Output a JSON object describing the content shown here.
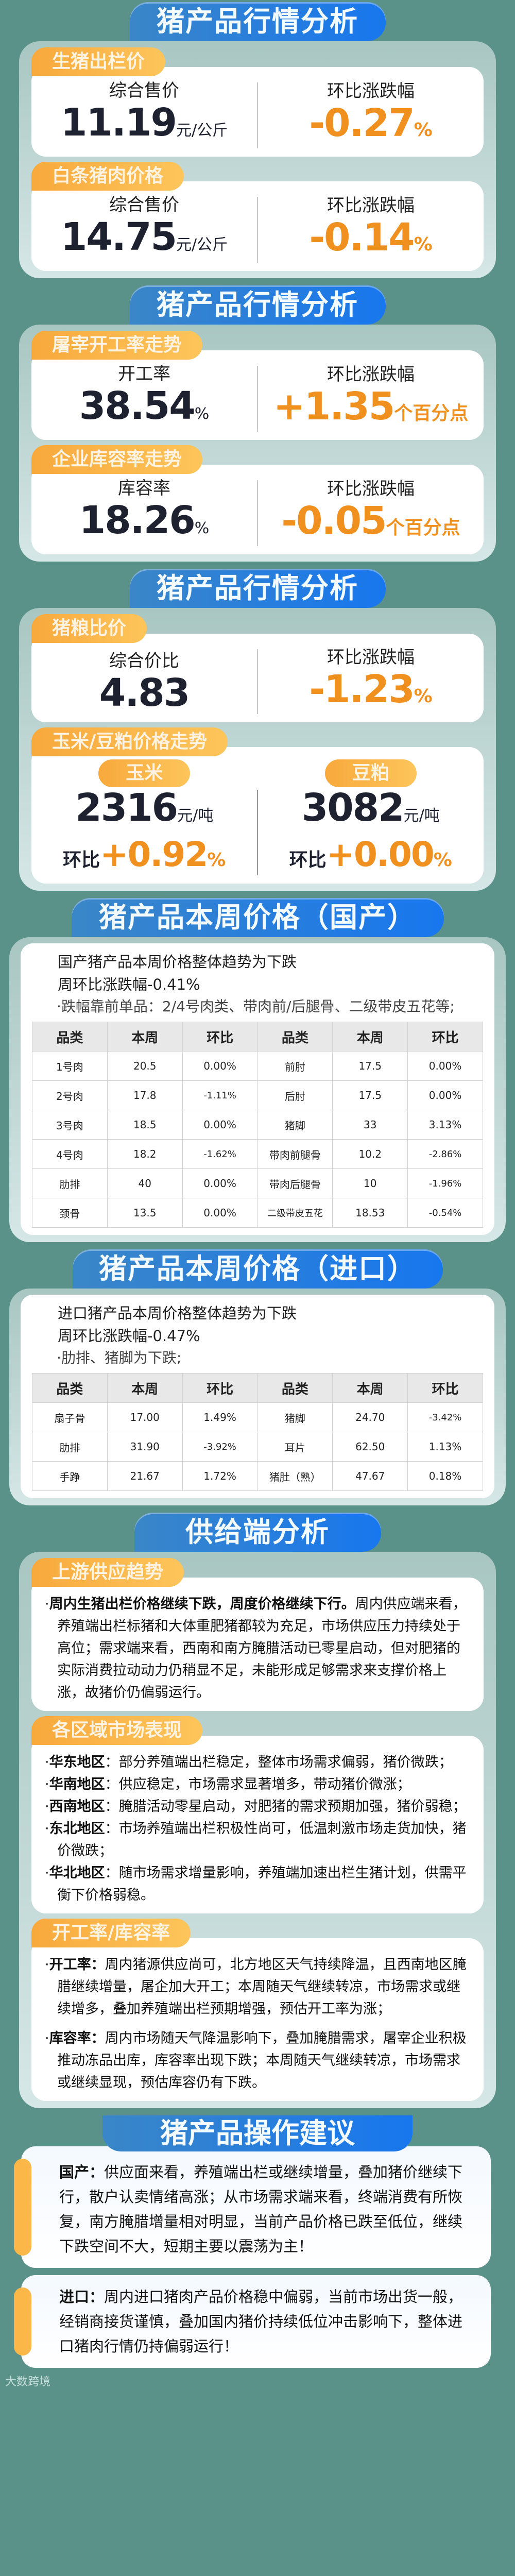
{
  "colors": {
    "background": "#5a9188",
    "banner": "#1877ee",
    "tab": "#fbb040",
    "change": "#f0901f",
    "value": "#1e2130"
  },
  "sections": {
    "s1": {
      "title": "猪产品行情分析",
      "hog": {
        "tab": "生猪出栏价",
        "label": "综合售价",
        "value": "11.19",
        "unit": "元/公斤",
        "change_label": "环比涨跌幅",
        "change": "-0.27",
        "change_unit": "%"
      },
      "carcass": {
        "tab": "白条猪肉价格",
        "label": "综合售价",
        "value": "14.75",
        "unit": "元/公斤",
        "change_label": "环比涨跌幅",
        "change": "-0.14",
        "change_unit": "%"
      }
    },
    "s2": {
      "title": "猪产品行情分析",
      "slaughter": {
        "tab": "屠宰开工率走势",
        "label": "开工率",
        "value": "38.54",
        "unit": "%",
        "change_label": "环比涨跌幅",
        "change": "+1.35",
        "change_unit": "个百分点"
      },
      "storage": {
        "tab": "企业库容率走势",
        "label": "库容率",
        "value": "18.26",
        "unit": "%",
        "change_label": "环比涨跌幅",
        "change": "-0.05",
        "change_unit": "个百分点"
      }
    },
    "s3": {
      "title": "猪产品行情分析",
      "ratio": {
        "tab": "猪粮比价",
        "label": "综合价比",
        "value": "4.83",
        "change_label": "环比涨跌幅",
        "change": "-1.23",
        "change_unit": "%"
      },
      "feed": {
        "tab": "玉米/豆粕价格走势",
        "corn": {
          "name": "玉米",
          "value": "2316",
          "unit": "元/吨",
          "change_label": "环比",
          "change": "+0.92",
          "change_unit": "%"
        },
        "soy": {
          "name": "豆粕",
          "value": "3082",
          "unit": "元/吨",
          "change_label": "环比",
          "change": "+0.00",
          "change_unit": "%"
        }
      }
    },
    "domestic": {
      "title": "猪产品本周价格（国产）",
      "line1": "国产猪产品本周价格整体趋势为下跌",
      "line2": "周环比涨跌幅-0.41%",
      "bullet": "·跌幅靠前单品：2/4号肉类、带肉前/后腿骨、二级带皮五花等;",
      "headers": [
        "品类",
        "本周",
        "环比",
        "品类",
        "本周",
        "环比"
      ],
      "rows": [
        [
          "1号肉",
          "20.5",
          "0.00%",
          "前肘",
          "17.5",
          "0.00%"
        ],
        [
          "2号肉",
          "17.8",
          "-1.11%",
          "后肘",
          "17.5",
          "0.00%"
        ],
        [
          "3号肉",
          "18.5",
          "0.00%",
          "猪脚",
          "33",
          "3.13%"
        ],
        [
          "4号肉",
          "18.2",
          "-1.62%",
          "带肉前腿骨",
          "10.2",
          "-2.86%"
        ],
        [
          "肋排",
          "40",
          "0.00%",
          "带肉后腿骨",
          "10",
          "-1.96%"
        ],
        [
          "颈骨",
          "13.5",
          "0.00%",
          "二级带皮五花",
          "18.53",
          "-0.54%"
        ]
      ]
    },
    "imported": {
      "title": "猪产品本周价格（进口）",
      "line1": "进口猪产品本周价格整体趋势为下跌",
      "line2": "周环比涨跌幅-0.47%",
      "bullet": "·肋排、猪脚为下跌;",
      "headers": [
        "品类",
        "本周",
        "环比",
        "品类",
        "本周",
        "环比"
      ],
      "rows": [
        [
          "扇子骨",
          "17.00",
          "1.49%",
          "猪脚",
          "24.70",
          "-3.42%"
        ],
        [
          "肋排",
          "31.90",
          "-3.92%",
          "耳片",
          "62.50",
          "1.13%"
        ],
        [
          "手踭",
          "21.67",
          "1.72%",
          "猪肚（熟）",
          "47.67",
          "0.18%"
        ]
      ]
    },
    "supply": {
      "title": "供给端分析",
      "upstream": {
        "tab": "上游供应趋势",
        "bold": "周内生猪出栏价格继续下跌，周度价格继续下行。",
        "text": "周内供应端来看，养殖端出栏标猪和大体重肥猪都较为充足，市场供应压力持续处于高位；需求端来看，西南和南方腌腊活动已零星启动，但对肥猪的实际消费拉动动力仍稍显不足，未能形成足够需求来支撑价格上涨，故猪价仍偏弱运行。"
      },
      "regions": {
        "tab": "各区域市场表现",
        "items": [
          {
            "name": "华东地区",
            "text": "：部分养殖端出栏稳定，整体市场需求偏弱，猪价微跌；"
          },
          {
            "name": "华南地区",
            "text": "：供应稳定，市场需求显著增多，带动猪价微涨；"
          },
          {
            "name": "西南地区",
            "text": "：腌腊活动零星启动，对肥猪的需求预期加强，猪价弱稳；"
          },
          {
            "name": "东北地区",
            "text": "：市场养殖端出栏积极性尚可，低温刺激市场走货加快，猪价微跌；"
          },
          {
            "name": "华北地区",
            "text": "：随市场需求增量影响，养殖端加速出栏生猪计划，供需平衡下价格弱稳。"
          }
        ]
      },
      "rates": {
        "tab": "开工率/库容率",
        "items": [
          {
            "name": "开工率：",
            "text": "周内猪源供应尚可，北方地区天气持续降温，且西南地区腌腊继续增量，屠企加大开工；本周随天气继续转凉，市场需求或继续增多，叠加养殖端出栏预期增强，预估开工率为涨；"
          },
          {
            "name": "库容率：",
            "text": "周内市场随天气降温影响下，叠加腌腊需求，屠宰企业积极推动冻品出库，库容率出现下跌；本周随天气继续转凉，市场需求或继续显现，预估库容仍有下跌。"
          }
        ]
      }
    },
    "advice": {
      "title": "猪产品操作建议",
      "domestic": {
        "name": "国产：",
        "text": "供应面来看，养殖端出栏或继续增量，叠加猪价继续下行，散户认卖情绪高涨；从市场需求端来看，终端消费有所恢复，南方腌腊增量相对明显，当前产品价格已跌至低位，继续下跌空间不大，短期主要以震荡为主！"
      },
      "imported": {
        "name": "进口：",
        "text": "周内进口猪肉产品价格稳中偏弱，当前市场出货一般，经销商接货谨慎，叠加国内猪价持续低位冲击影响下，整体进口猪肉行情仍持偏弱运行！"
      }
    }
  },
  "watermark": "大数跨境"
}
